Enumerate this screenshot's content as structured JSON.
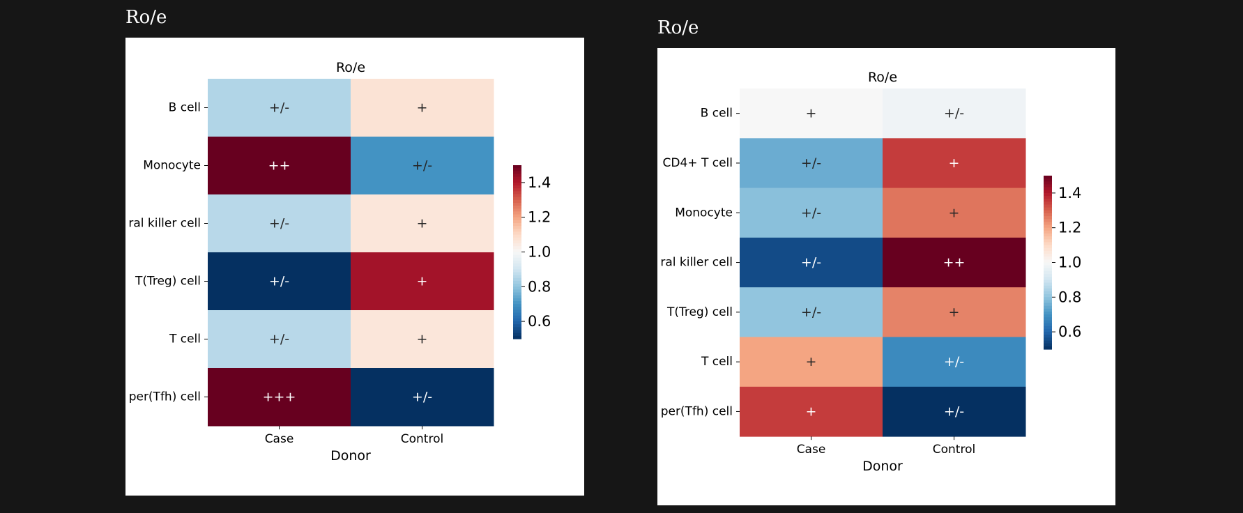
{
  "panels": [
    {
      "heading": "Ro/e"
    },
    {
      "heading": "Ro/e"
    }
  ],
  "chart_data": [
    {
      "type": "heatmap",
      "title": "Ro/e",
      "xlabel": "Donor",
      "ylabel": "",
      "x": [
        "Case",
        "Control"
      ],
      "y": [
        "B cell",
        "Monocyte",
        "ral killer cell",
        "T(Treg) cell",
        "T cell",
        "per(Tfh) cell"
      ],
      "values": [
        [
          0.85,
          1.07
        ],
        [
          1.55,
          0.7
        ],
        [
          0.86,
          1.06
        ],
        [
          0.5,
          1.42
        ],
        [
          0.86,
          1.06
        ],
        [
          1.55,
          0.5
        ]
      ],
      "annotations": [
        [
          "+/-",
          "+"
        ],
        [
          "++",
          "+/-"
        ],
        [
          "+/-",
          "+"
        ],
        [
          "+/-",
          "+"
        ],
        [
          "+/-",
          "+"
        ],
        [
          "+++",
          "+/-"
        ]
      ],
      "colormap": "RdBu_r",
      "vmin": 0.5,
      "vmax": 1.5,
      "colorbar_ticks": [
        "0.6",
        "0.8",
        "1.0",
        "1.2",
        "1.4"
      ]
    },
    {
      "type": "heatmap",
      "title": "Ro/e",
      "xlabel": "Donor",
      "ylabel": "",
      "x": [
        "Case",
        "Control"
      ],
      "y": [
        "B cell",
        "CD4+ T cell",
        "Monocyte",
        "ral killer cell",
        "T(Treg) cell",
        "T cell",
        "per(Tfh) cell"
      ],
      "values": [
        [
          1.0,
          0.98
        ],
        [
          0.75,
          1.35
        ],
        [
          0.79,
          1.27
        ],
        [
          0.55,
          1.55
        ],
        [
          0.8,
          1.25
        ],
        [
          1.2,
          0.68
        ],
        [
          1.35,
          0.5
        ]
      ],
      "annotations": [
        [
          "+",
          "+/-"
        ],
        [
          "+/-",
          "+"
        ],
        [
          "+/-",
          "+"
        ],
        [
          "+/-",
          "++"
        ],
        [
          "+/-",
          "+"
        ],
        [
          "+",
          "+/-"
        ],
        [
          "+",
          "+/-"
        ]
      ],
      "colormap": "RdBu_r",
      "vmin": 0.5,
      "vmax": 1.5,
      "colorbar_ticks": [
        "0.6",
        "0.8",
        "1.0",
        "1.2",
        "1.4"
      ]
    }
  ]
}
